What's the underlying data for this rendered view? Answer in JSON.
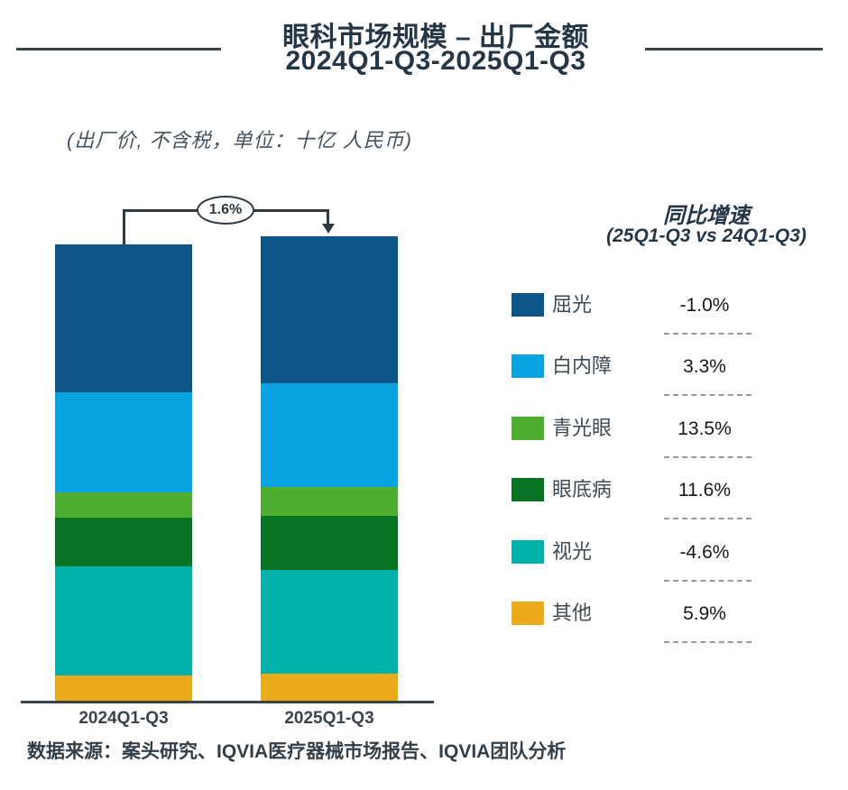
{
  "header": {
    "title_line1": "眼科市场规模 – 出厂金额",
    "title_line2": "2024Q1-Q3-2025Q1-Q3",
    "subtitle": "(出厂价, 不含税，单位：十亿 人民币)"
  },
  "legend": {
    "header_line1": "同比增速",
    "header_line2": "(25Q1-Q3 vs 24Q1-Q3)"
  },
  "chart_data": {
    "type": "bar",
    "subtype": "stacked",
    "title": "眼科市场规模 – 出厂金额 2024Q1-Q3-2025Q1-Q3",
    "unit_note": "出厂价, 不含税, 单位: 十亿人民币",
    "categories": [
      "2024Q1-Q3",
      "2025Q1-Q3"
    ],
    "series": [
      {
        "key": "refractive",
        "name": "屈光",
        "color": "#0D568A",
        "yoy": "-1.0%",
        "values": [
          164,
          163
        ]
      },
      {
        "key": "cataract",
        "name": "白内障",
        "color": "#08A3E0",
        "yoy": "3.3%",
        "values": [
          111,
          115
        ]
      },
      {
        "key": "glaucoma",
        "name": "青光眼",
        "color": "#4FAD2F",
        "yoy": "13.5%",
        "values": [
          28,
          32
        ]
      },
      {
        "key": "fundus-disease",
        "name": "眼底病",
        "color": "#077423",
        "yoy": "11.6%",
        "values": [
          54,
          60
        ]
      },
      {
        "key": "optometry",
        "name": "视光",
        "color": "#00B2A9",
        "yoy": "-4.6%",
        "values": [
          121,
          115
        ]
      },
      {
        "key": "others",
        "name": "其他",
        "color": "#EBAA19",
        "yoy": "5.9%",
        "values": [
          30,
          32
        ]
      }
    ],
    "stack_order": "top-to-bottom as listed",
    "value_basis": "relative segment heights in pixels; chart displays no numeric axis",
    "total_growth_label": "1.6%",
    "legend_position": "right",
    "grid": false
  },
  "footer": {
    "source": "数据来源：案头研究、IQVIA医疗器械市场报告、IQVIA团队分析"
  },
  "colors": {
    "title_text": "#253746",
    "bracket_line": "#2d3a42",
    "axis_line": "#37434d",
    "legend_label_text": "#3d4a54",
    "legend_pct_text": "#15191c",
    "dash_divider": "#939ba1",
    "footer_text": "#333f48"
  }
}
